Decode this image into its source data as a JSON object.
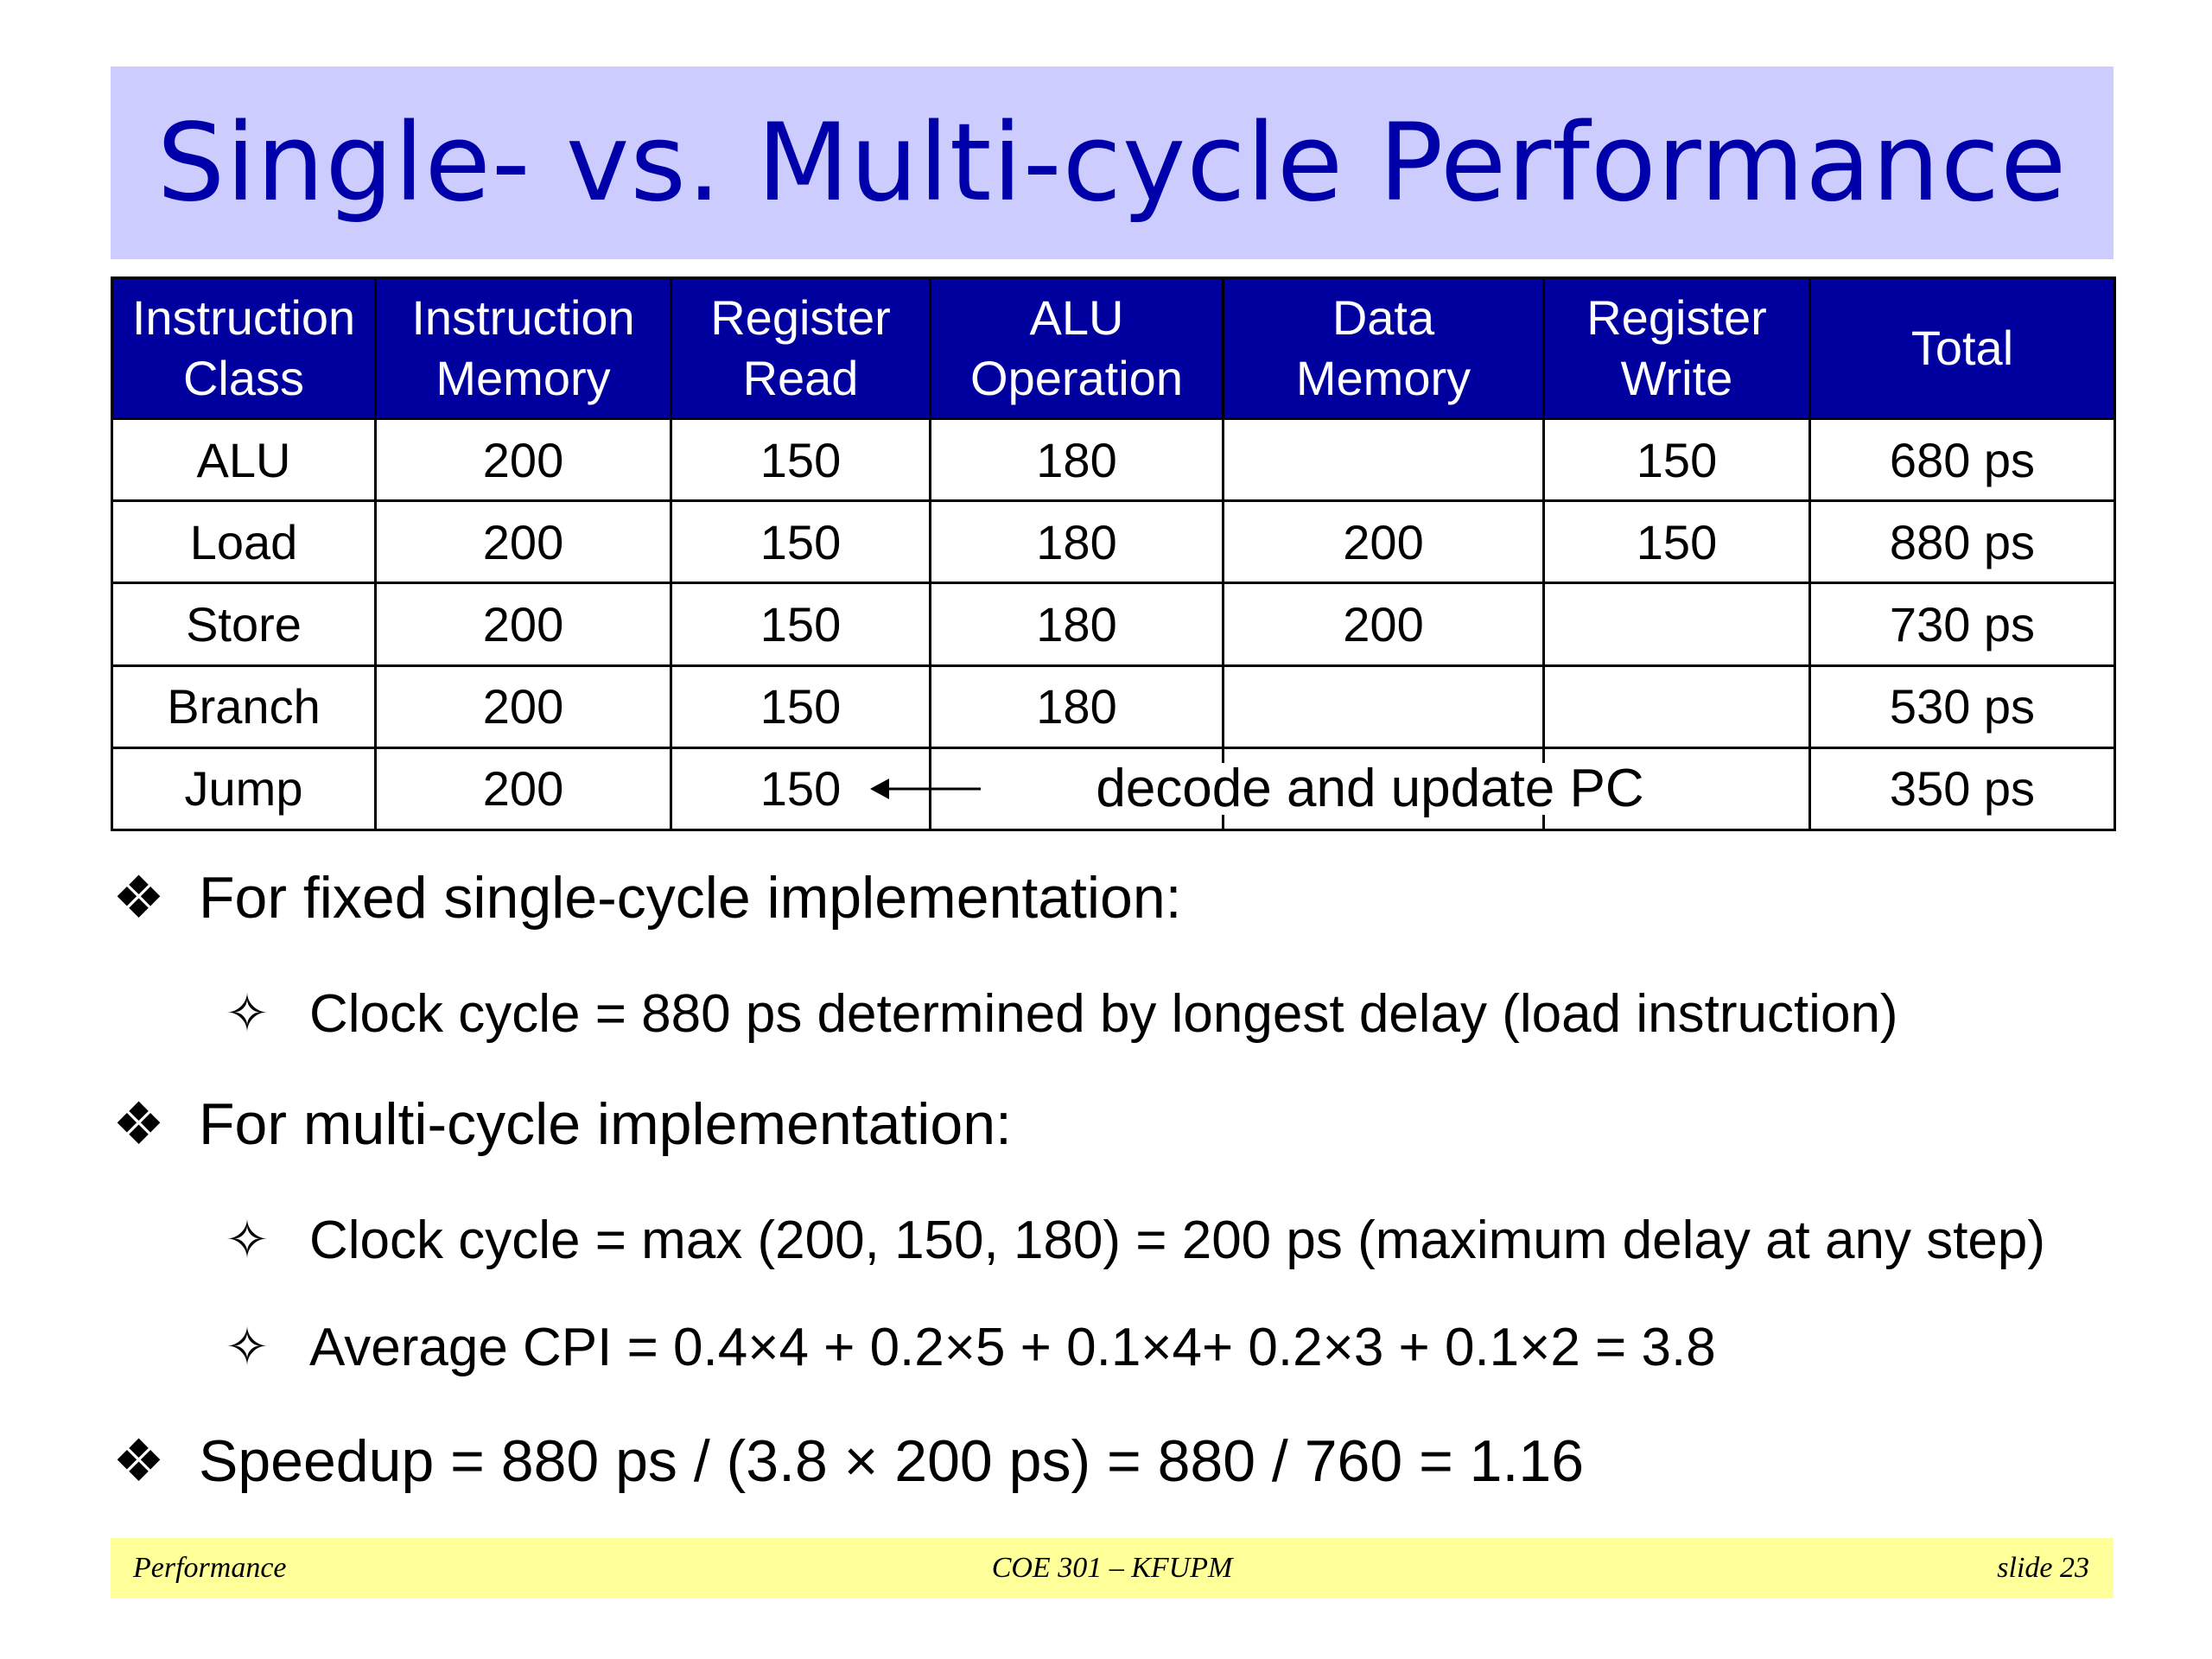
{
  "title": "Single- vs. Multi-cycle Performance",
  "table": {
    "headers": [
      "Instruction Class",
      "Instruction Memory",
      "Register Read",
      "ALU Operation",
      "Data Memory",
      "Register Write",
      "Total"
    ],
    "rows": [
      [
        "ALU",
        "200",
        "150",
        "180",
        "",
        "150",
        "680 ps"
      ],
      [
        "Load",
        "200",
        "150",
        "180",
        "200",
        "150",
        "880 ps"
      ],
      [
        "Store",
        "200",
        "150",
        "180",
        "200",
        "",
        "730 ps"
      ],
      [
        "Branch",
        "200",
        "150",
        "180",
        "",
        "",
        "530 ps"
      ]
    ],
    "jump_row": {
      "class": "Jump",
      "imem": "200",
      "rread": "150",
      "annotation": "decode and update PC",
      "total": "350 ps"
    }
  },
  "bullets": {
    "b1": "For fixed single-cycle implementation:",
    "b1_sub1": "Clock cycle = 880 ps determined by longest delay (load instruction)",
    "b2": "For multi-cycle implementation:",
    "b2_sub1": "Clock cycle = max (200, 150, 180) = 200 ps (maximum delay at any step)",
    "b2_sub2": "Average CPI = 0.4×4 + 0.2×5 + 0.1×4+ 0.2×3 + 0.1×2 = 3.8",
    "b3": "Speedup = 880 ps / (3.8 × 200 ps) = 880 / 760 = 1.16"
  },
  "footer": {
    "left": "Performance",
    "center": "COE 301 – KFUPM",
    "right": "slide 23"
  },
  "icons": {
    "main_bullet": "four-diamond-bullet-icon",
    "sub_bullet": "four-point-star-bullet-icon"
  },
  "colors": {
    "title_band": "#ccccff",
    "title_text": "#0000aa",
    "header_fill": "#00009f",
    "footer_band": "#ffff99"
  }
}
